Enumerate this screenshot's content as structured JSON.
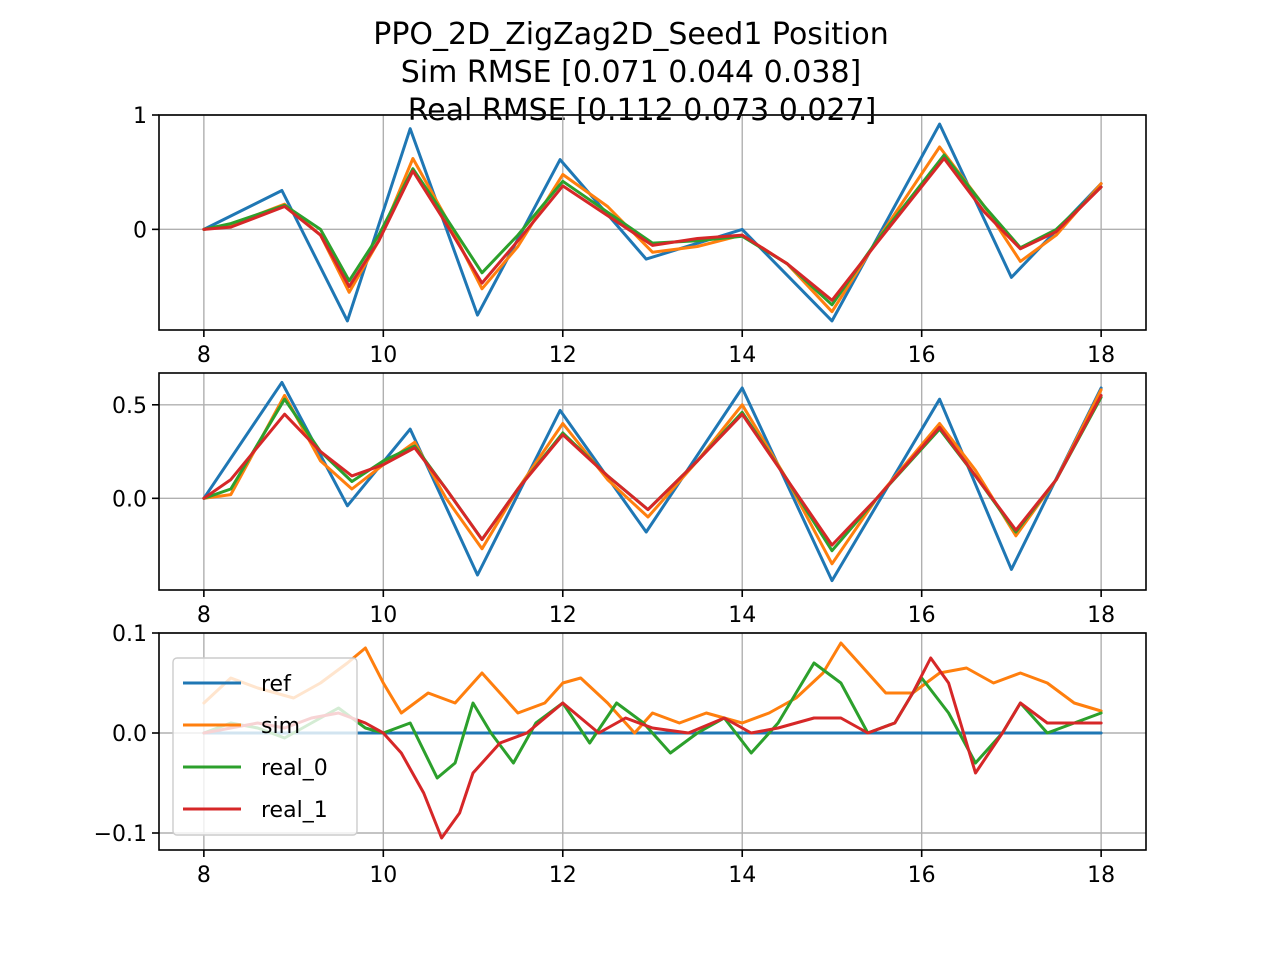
{
  "figure": {
    "title_lines": [
      "PPO_2D_ZigZag2D_Seed1   Position",
      "Sim RMSE [0.071 0.044 0.038]",
      "Real RMSE [0.112 0.073 0.027]"
    ]
  },
  "colors": {
    "ref": "#1f77b4",
    "sim": "#ff7f0e",
    "real_0": "#2ca02c",
    "real_1": "#d62728"
  },
  "chart_data": [
    {
      "type": "line",
      "xlim": [
        7.5,
        18.5
      ],
      "ylim": [
        -0.88,
        1.0
      ],
      "xticks": [
        8,
        10,
        12,
        14,
        16,
        18
      ],
      "yticks": [
        0,
        1
      ],
      "yticklabels": [
        "0",
        "1"
      ],
      "grid": true,
      "series": [
        {
          "key": "ref",
          "x": [
            8,
            8.87,
            9.6,
            10.3,
            11.05,
            11.97,
            12.93,
            14.0,
            15.0,
            16.2,
            17.0,
            18.0
          ],
          "y": [
            0,
            0.34,
            -0.8,
            0.88,
            -0.75,
            0.61,
            -0.26,
            0.0,
            -0.8,
            0.92,
            -0.42,
            0.4
          ]
        },
        {
          "key": "sim",
          "x": [
            8,
            8.3,
            8.9,
            9.3,
            9.62,
            9.95,
            10.33,
            10.7,
            11.1,
            11.5,
            12.0,
            12.5,
            13.0,
            13.5,
            14.0,
            14.5,
            15.0,
            15.5,
            16.2,
            16.7,
            17.1,
            17.5,
            18.0
          ],
          "y": [
            0,
            0.04,
            0.22,
            -0.05,
            -0.55,
            -0.1,
            0.62,
            0.1,
            -0.52,
            -0.15,
            0.48,
            0.2,
            -0.2,
            -0.15,
            -0.05,
            -0.3,
            -0.72,
            -0.1,
            0.72,
            0.2,
            -0.28,
            -0.05,
            0.4
          ]
        },
        {
          "key": "real_0",
          "x": [
            8,
            8.3,
            8.9,
            9.3,
            9.62,
            9.95,
            10.33,
            10.7,
            11.1,
            11.5,
            12.0,
            12.5,
            13.0,
            13.5,
            14.0,
            14.5,
            15.0,
            15.5,
            16.25,
            16.7,
            17.1,
            17.5,
            18.0
          ],
          "y": [
            0,
            0.05,
            0.21,
            0.0,
            -0.45,
            -0.05,
            0.53,
            0.1,
            -0.38,
            -0.05,
            0.42,
            0.15,
            -0.12,
            -0.1,
            -0.06,
            -0.3,
            -0.66,
            -0.1,
            0.65,
            0.2,
            -0.16,
            0.0,
            0.37
          ]
        },
        {
          "key": "real_1",
          "x": [
            8,
            8.3,
            8.9,
            9.3,
            9.62,
            9.95,
            10.33,
            10.7,
            11.1,
            11.5,
            12.0,
            12.5,
            13.0,
            13.5,
            14.0,
            14.5,
            15.0,
            15.5,
            16.25,
            16.7,
            17.1,
            17.5,
            18.0
          ],
          "y": [
            0,
            0.02,
            0.2,
            -0.05,
            -0.5,
            -0.1,
            0.51,
            0.05,
            -0.47,
            -0.1,
            0.38,
            0.12,
            -0.14,
            -0.08,
            -0.05,
            -0.3,
            -0.62,
            -0.12,
            0.62,
            0.15,
            -0.17,
            -0.02,
            0.37
          ]
        }
      ]
    },
    {
      "type": "line",
      "xlim": [
        7.5,
        18.5
      ],
      "ylim": [
        -0.49,
        0.67
      ],
      "xticks": [
        8,
        10,
        12,
        14,
        16,
        18
      ],
      "yticks": [
        0.0,
        0.5
      ],
      "yticklabels": [
        "0.0",
        "0.5"
      ],
      "grid": true,
      "series": [
        {
          "key": "ref",
          "x": [
            8,
            8.87,
            9.6,
            10.3,
            11.05,
            11.97,
            12.93,
            14.0,
            15.0,
            16.2,
            17.0,
            18.0
          ],
          "y": [
            0,
            0.62,
            -0.04,
            0.37,
            -0.41,
            0.47,
            -0.18,
            0.59,
            -0.44,
            0.53,
            -0.38,
            0.59
          ]
        },
        {
          "key": "sim",
          "x": [
            8,
            8.3,
            8.9,
            9.3,
            9.65,
            10.0,
            10.35,
            10.7,
            11.1,
            11.5,
            12.0,
            12.5,
            12.95,
            13.5,
            14.0,
            14.5,
            15.0,
            15.5,
            16.2,
            16.6,
            17.05,
            17.5,
            18.0
          ],
          "y": [
            0,
            0.02,
            0.55,
            0.2,
            0.05,
            0.18,
            0.3,
            0.0,
            -0.27,
            0.05,
            0.4,
            0.1,
            -0.1,
            0.2,
            0.5,
            0.1,
            -0.35,
            0.0,
            0.4,
            0.15,
            -0.2,
            0.1,
            0.58
          ]
        },
        {
          "key": "real_0",
          "x": [
            8,
            8.3,
            8.9,
            9.3,
            9.65,
            10.0,
            10.35,
            10.7,
            11.1,
            11.5,
            12.0,
            12.5,
            12.95,
            13.5,
            14.0,
            14.5,
            15.0,
            15.5,
            16.2,
            16.6,
            17.05,
            17.5,
            18.0
          ],
          "y": [
            0,
            0.05,
            0.53,
            0.25,
            0.09,
            0.2,
            0.28,
            0.05,
            -0.22,
            0.05,
            0.35,
            0.12,
            -0.06,
            0.2,
            0.46,
            0.1,
            -0.28,
            0.0,
            0.37,
            0.12,
            -0.18,
            0.1,
            0.54
          ]
        },
        {
          "key": "real_1",
          "x": [
            8,
            8.3,
            8.9,
            9.3,
            9.65,
            10.0,
            10.35,
            10.7,
            11.1,
            11.5,
            12.0,
            12.5,
            12.95,
            13.5,
            14.0,
            14.5,
            15.0,
            15.5,
            16.2,
            16.6,
            17.05,
            17.5,
            18.0
          ],
          "y": [
            0,
            0.1,
            0.45,
            0.25,
            0.12,
            0.18,
            0.27,
            0.05,
            -0.22,
            0.05,
            0.34,
            0.12,
            -0.06,
            0.2,
            0.45,
            0.1,
            -0.25,
            0.0,
            0.38,
            0.12,
            -0.17,
            0.1,
            0.55
          ]
        }
      ]
    },
    {
      "type": "line",
      "xlim": [
        7.5,
        18.5
      ],
      "ylim": [
        -0.117,
        0.1
      ],
      "xticks": [
        8,
        10,
        12,
        14,
        16,
        18
      ],
      "yticks": [
        -0.1,
        0.0,
        0.1
      ],
      "yticklabels": [
        "−0.1",
        "0.0",
        "0.1"
      ],
      "grid": true,
      "legend": {
        "entries": [
          "ref",
          "sim",
          "real_0",
          "real_1"
        ],
        "placement": "center-left"
      },
      "series": [
        {
          "key": "ref",
          "x": [
            8,
            18
          ],
          "y": [
            0,
            0
          ]
        },
        {
          "key": "sim",
          "x": [
            8,
            8.3,
            8.6,
            9.0,
            9.3,
            9.6,
            9.8,
            10.0,
            10.2,
            10.5,
            10.8,
            11.1,
            11.3,
            11.5,
            11.8,
            12.0,
            12.2,
            12.5,
            12.8,
            13.0,
            13.3,
            13.6,
            14.0,
            14.3,
            14.6,
            14.9,
            15.1,
            15.3,
            15.6,
            15.9,
            16.2,
            16.5,
            16.8,
            17.1,
            17.4,
            17.7,
            18.0
          ],
          "y": [
            0.03,
            0.055,
            0.045,
            0.035,
            0.05,
            0.07,
            0.085,
            0.05,
            0.02,
            0.04,
            0.03,
            0.06,
            0.04,
            0.02,
            0.03,
            0.05,
            0.055,
            0.03,
            0.0,
            0.02,
            0.01,
            0.02,
            0.01,
            0.02,
            0.035,
            0.06,
            0.09,
            0.07,
            0.04,
            0.04,
            0.06,
            0.065,
            0.05,
            0.06,
            0.05,
            0.03,
            0.022
          ]
        },
        {
          "key": "real_0",
          "x": [
            8,
            8.3,
            8.6,
            8.9,
            9.2,
            9.5,
            9.8,
            10.0,
            10.3,
            10.6,
            10.8,
            11.0,
            11.2,
            11.45,
            11.7,
            12.0,
            12.3,
            12.6,
            12.9,
            13.2,
            13.5,
            13.8,
            14.1,
            14.4,
            14.8,
            15.1,
            15.4,
            15.7,
            16.0,
            16.3,
            16.6,
            16.9,
            17.1,
            17.4,
            17.7,
            18.0
          ],
          "y": [
            0.0,
            0.01,
            0.005,
            -0.005,
            0.01,
            0.025,
            0.005,
            0.0,
            0.01,
            -0.045,
            -0.03,
            0.03,
            0.0,
            -0.03,
            0.01,
            0.03,
            -0.01,
            0.03,
            0.01,
            -0.02,
            0.0,
            0.015,
            -0.02,
            0.01,
            0.07,
            0.05,
            0.0,
            0.01,
            0.055,
            0.02,
            -0.03,
            0.0,
            0.03,
            0.0,
            0.01,
            0.02
          ]
        },
        {
          "key": "real_1",
          "x": [
            8,
            8.3,
            8.6,
            8.9,
            9.2,
            9.5,
            9.8,
            10.0,
            10.2,
            10.45,
            10.65,
            10.85,
            11.0,
            11.3,
            11.6,
            12.0,
            12.4,
            12.7,
            13.0,
            13.4,
            13.8,
            14.1,
            14.4,
            14.8,
            15.1,
            15.4,
            15.7,
            15.9,
            16.1,
            16.3,
            16.6,
            16.9,
            17.1,
            17.4,
            17.7,
            18.0
          ],
          "y": [
            0.0,
            0.005,
            0.01,
            0.005,
            0.015,
            0.02,
            0.01,
            0.0,
            -0.02,
            -0.06,
            -0.105,
            -0.08,
            -0.04,
            -0.01,
            0.0,
            0.03,
            0.0,
            0.015,
            0.005,
            0.0,
            0.015,
            0.0,
            0.005,
            0.015,
            0.015,
            0.0,
            0.01,
            0.04,
            0.075,
            0.05,
            -0.04,
            0.0,
            0.03,
            0.01,
            0.01,
            0.01
          ]
        }
      ]
    }
  ]
}
